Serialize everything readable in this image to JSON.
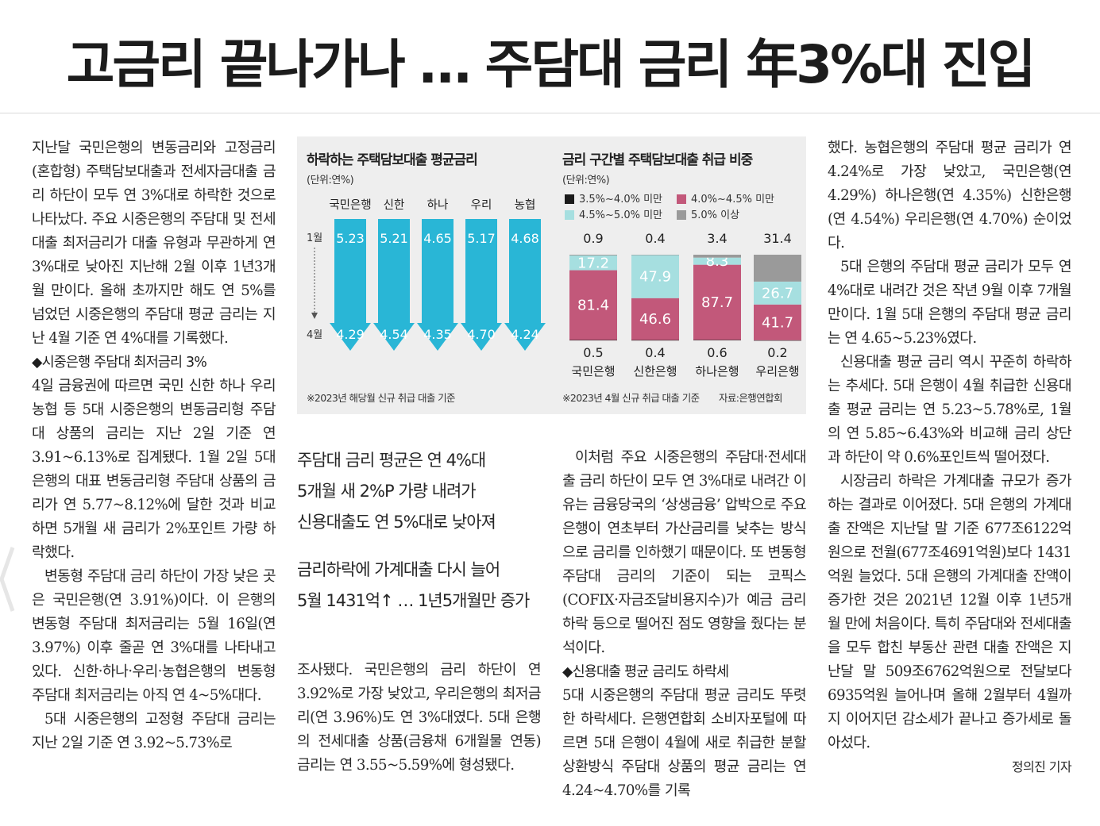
{
  "headline": "고금리 끝나가나 … 주담대 금리 年3%대 진입",
  "col1": {
    "p1": "지난달 국민은행의 변동금리와 고정금리(혼합형) 주택담보대출과 전세자금대출 금리 하단이 모두 연 3%대로 하락한 것으로 나타났다. 주요 시중은행의 주담대 및 전세대출 최저금리가 대출 유형과 무관하게 연 3%대로 낮아진 지난해 2월 이후 1년3개월 만이다. 올해 초까지만 해도 연 5%를 넘었던 시중은행의 주담대 평균 금리는 지난 4월 기준 연 4%대를 기록했다.",
    "sub1": "◆시중은행 주담대 최저금리 3%",
    "p2": "4일 금융권에 따르면 국민 신한 하나 우리 농협 등 5대 시중은행의 변동금리형 주담대 상품의 금리는 지난 2일 기준 연 3.91~6.13%로 집계됐다. 1월 2일 5대 은행의 대표 변동금리형 주담대 상품의 금리가 연 5.77~8.12%에 달한 것과 비교하면 5개월 새 금리가 2%포인트 가량 하락했다.",
    "p3": "변동형 주담대 금리 하단이 가장 낮은 곳은 국민은행(연 3.91%)이다. 이 은행의 변동형 주담대 최저금리는 5월 16일(연 3.97%) 이후 줄곧 연 3%대를 나타내고 있다. 신한·하나·우리·농협은행의 변동형 주담대 최저금리는 아직 연 4~5%대다.",
    "p4": "5대 시중은행의 고정형 주담대 금리는 지난 2일 기준 연 3.92~5.73%로"
  },
  "deck1": [
    "주담대 금리 평균은 연 4%대",
    "5개월 새 2%P 가량 내려가",
    "신용대출도 연 5%대로 낮아져"
  ],
  "deck2": [
    "금리하락에 가계대출 다시 늘어",
    "5월 1431억↑ … 1년5개월만 증가"
  ],
  "col3": {
    "p1": "조사됐다. 국민은행의 금리 하단이 연 3.92%로 가장 낮았고, 우리은행의 최저금리(연 3.96%)도 연 3%대였다. 5대 은행의 전세대출 상품(금융채 6개월물 연동) 금리는 연 3.55~5.59%에 형성됐다."
  },
  "col4": {
    "p1": "이처럼 주요 시중은행의 주담대·전세대출 금리 하단이 모두 연 3%대로 내려간 이유는 금융당국의 ‘상생금융’ 압박으로 주요 은행이 연초부터 가산금리를 낮추는 방식으로 금리를 인하했기 때문이다. 또 변동형 주담대 금리의 기준이 되는 코픽스(COFIX·자금조달비용지수)가 예금 금리 하락 등으로 떨어진 점도 영향을 줬다는 분석이다.",
    "sub1": "◆신용대출 평균 금리도 하락세",
    "p2": "5대 시중은행의 주담대 평균 금리도 뚜렷한 하락세다. 은행연합회 소비자포털에 따르면 5대 은행이 4월에 새로 취급한 분할상환방식 주담대 상품의 평균 금리는 연 4.24~4.70%를 기록"
  },
  "col5": {
    "p1": "했다. 농협은행의 주담대 평균 금리가 연 4.24%로 가장 낮았고, 국민은행(연 4.29%) 하나은행(연 4.35%) 신한은행(연 4.54%) 우리은행(연 4.70%) 순이었다.",
    "p2": "5대 은행의 주담대 평균 금리가 모두 연 4%대로 내려간 것은 작년 9월 이후 7개월 만이다. 1월 5대 은행의 주담대 평균 금리는 연 4.65~5.23%였다.",
    "p3": "신용대출 평균 금리 역시 꾸준히 하락하는 추세다. 5대 은행이 4월 취급한 신용대출 평균 금리는 연 5.23~5.78%로, 1월의 연 5.85~6.43%와 비교해 금리 상단과 하단이 약 0.6%포인트씩 떨어졌다.",
    "p4": "시장금리 하락은 가계대출 규모가 증가하는 결과로 이어졌다. 5대 은행의 가계대출 잔액은 지난달 말 기준 677조6122억원으로 전월(677조4691억원)보다 1431억원 늘었다. 5대 은행의 가계대출 잔액이 증가한 것은 2021년 12월 이후 1년5개월 만에 처음이다. 특히 주담대와 전세대출을 모두 합친 부동산 관련 대출 잔액은 지난달 말 509조6762억원으로 전달보다 6935억원 늘어나며 올해 2월부터 4월까지 이어지던 감소세가 끝나고 증가세로 돌아섰다.",
    "byline": "정의진 기자"
  },
  "chart_data": [
    {
      "type": "bar",
      "title": "하락하는 주택담보대출 평균금리",
      "unit": "(단위:연%)",
      "categories": [
        "국민은행",
        "신한",
        "하나",
        "우리",
        "농협"
      ],
      "row_labels": [
        "1월",
        "4월"
      ],
      "series": [
        {
          "name": "1월",
          "values": [
            5.23,
            5.21,
            4.65,
            5.17,
            4.68
          ]
        },
        {
          "name": "4월",
          "values": [
            4.29,
            4.54,
            4.35,
            4.7,
            4.24
          ]
        }
      ],
      "value_labels": {
        "jan": [
          "5.23",
          "5.21",
          "4.65",
          "5.17",
          "4.68"
        ],
        "apr": [
          "4.29",
          "4.54",
          "4.35",
          "4.70",
          "4.24"
        ]
      },
      "note": "※2023년 해당월 신규 취급 대출 기준",
      "color": "#29b6d6"
    },
    {
      "type": "bar",
      "stacked": true,
      "title": "금리 구간별 주택담보대출 취급 비중",
      "unit": "(단위:연%)",
      "categories": [
        "국민은행",
        "신한은행",
        "하나은행",
        "우리은행"
      ],
      "series": [
        {
          "name": "3.5%~4.0% 미만",
          "color": "#1a1a1a",
          "values": [
            0.5,
            0.4,
            0.6,
            0.2
          ],
          "labels": [
            "0.5",
            "0.4",
            "0.6",
            "0.2"
          ]
        },
        {
          "name": "4.0%~4.5% 미만",
          "color": "#c2587a",
          "values": [
            81.4,
            46.6,
            87.7,
            41.7
          ],
          "labels": [
            "81.4",
            "46.6",
            "87.7",
            "41.7"
          ]
        },
        {
          "name": "4.5%~5.0% 미만",
          "color": "#a6dfe0",
          "values": [
            17.2,
            47.9,
            8.3,
            26.7
          ],
          "labels": [
            "17.2",
            "47.9",
            "8.3",
            "26.7"
          ]
        },
        {
          "name": "5.0% 이상",
          "color": "#9a9a9a",
          "values": [
            0.9,
            0.4,
            3.4,
            31.4
          ],
          "labels": [
            "0.9",
            "0.4",
            "3.4",
            "31.4"
          ]
        }
      ],
      "note": "※2023년 4월 신규 취급 대출 기준",
      "source": "자료:은행연합회"
    }
  ]
}
